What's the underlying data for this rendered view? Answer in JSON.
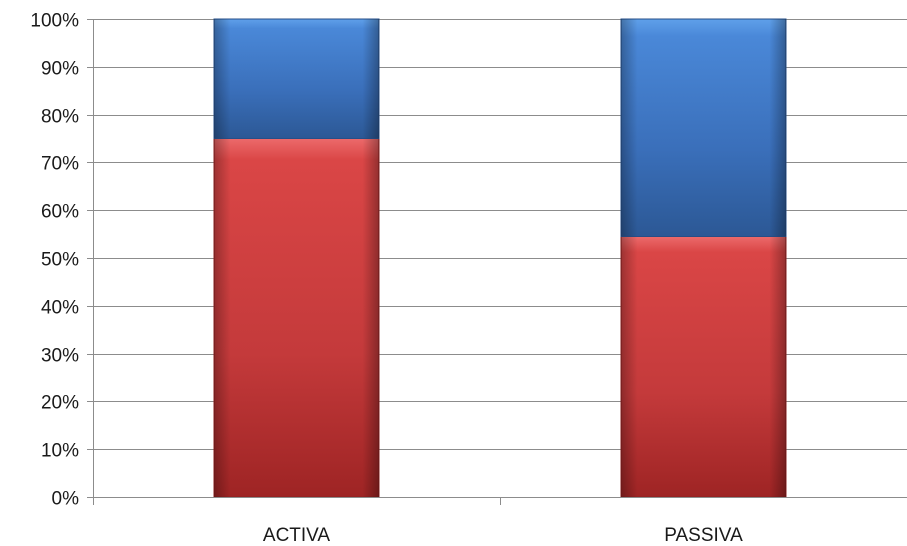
{
  "chart_data": {
    "type": "bar",
    "stacked": true,
    "normalized_percent": true,
    "categories": [
      "ACTIVA",
      "PASSIVA"
    ],
    "series": [
      {
        "values": [
          75,
          54.5
        ],
        "color": "#c0393b"
      },
      {
        "values": [
          25,
          45.5
        ],
        "color": "#3f72b8"
      }
    ],
    "y_tick_labels": [
      "0%",
      "10%",
      "20%",
      "30%",
      "40%",
      "50%",
      "60%",
      "70%",
      "80%",
      "90%",
      "100%"
    ],
    "ylim": [
      0,
      100
    ],
    "grid": true,
    "legend": "none",
    "title": "",
    "xlabel": "",
    "ylabel": ""
  }
}
